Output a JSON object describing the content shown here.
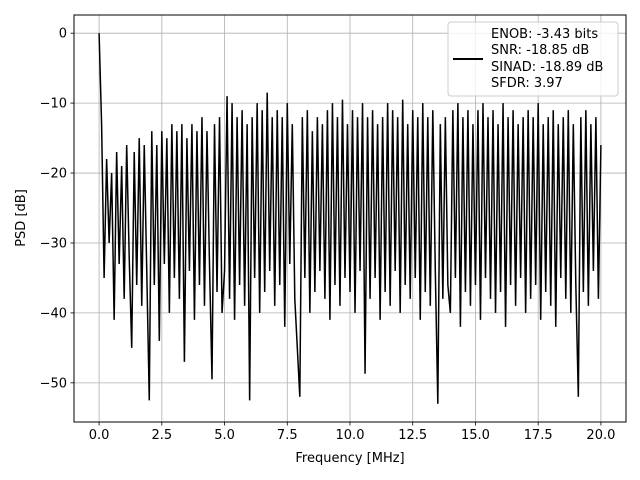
{
  "chart_data": {
    "type": "line",
    "title": "",
    "xlabel": "Frequency [MHz]",
    "ylabel": "PSD [dB]",
    "xlim": [
      -1.0,
      21.0
    ],
    "ylim": [
      -55.6,
      2.6
    ],
    "grid": true,
    "xticks": [
      0,
      2.5,
      5,
      7.5,
      10,
      12.5,
      15,
      17.5,
      20
    ],
    "xtick_labels": [
      "0.0",
      "2.5",
      "5.0",
      "7.5",
      "10.0",
      "12.5",
      "15.0",
      "17.5",
      "20.0"
    ],
    "yticks": [
      0,
      -10,
      -20,
      -30,
      -40,
      -50
    ],
    "ytick_labels": [
      "0",
      "−10",
      "−20",
      "−30",
      "−40",
      "−50"
    ],
    "legend": {
      "placement": "upper-right",
      "entries": [
        "ENOB: -3.43 bits",
        "SNR: -18.85 dB",
        "SINAD: -18.89 dB",
        "SFDR: 3.97"
      ]
    },
    "series": [
      {
        "name": "PSD",
        "color": "#000000",
        "x_start": 0.0,
        "x_step": 0.1,
        "values": [
          0,
          -13,
          -35,
          -18,
          -30,
          -20,
          -41,
          -17,
          -33,
          -19,
          -38,
          -16,
          -32,
          -45,
          -17,
          -36,
          -15,
          -39,
          -16,
          -34,
          -52.5,
          -14,
          -36,
          -16,
          -44,
          -14,
          -33,
          -15,
          -40,
          -13,
          -35,
          -14,
          -38,
          -13,
          -47,
          -15,
          -34,
          -13,
          -41,
          -14,
          -36,
          -12,
          -39,
          -14,
          -33,
          -49.5,
          -13,
          -37,
          -12,
          -40,
          -34,
          -9,
          -38,
          -10,
          -41,
          -12,
          -36,
          -11,
          -39,
          -13,
          -52.5,
          -12,
          -35,
          -10,
          -40,
          -11,
          -37,
          -8.5,
          -34,
          -12,
          -39,
          -11,
          -36,
          -12,
          -42,
          -10,
          -33,
          -13,
          -38,
          -45,
          -52,
          -12,
          -35,
          -11,
          -40,
          -14,
          -37,
          -12,
          -34,
          -13,
          -38,
          -11,
          -41,
          -10,
          -36,
          -12,
          -39,
          -9.5,
          -35,
          -13,
          -37,
          -11,
          -40,
          -12,
          -34,
          -10,
          -48.7,
          -12,
          -38,
          -11,
          -35,
          -13,
          -41,
          -12,
          -37,
          -10,
          -39,
          -11,
          -34,
          -12,
          -40,
          -9.5,
          -36,
          -13,
          -38,
          -11,
          -35,
          -12,
          -41,
          -10,
          -37,
          -12,
          -39,
          -11,
          -34,
          -53,
          -13,
          -38,
          -12,
          -36,
          -40,
          -11,
          -35,
          -10,
          -42,
          -12,
          -37,
          -11,
          -39,
          -13,
          -36,
          -11,
          -41,
          -10,
          -35,
          -12,
          -38,
          -11,
          -40,
          -13,
          -37,
          -10,
          -42,
          -12,
          -36,
          -11,
          -39,
          -13,
          -35,
          -12,
          -40,
          -11,
          -38,
          -12,
          -36,
          -10,
          -41,
          -13,
          -37,
          -12,
          -39,
          -11,
          -42,
          -13,
          -35,
          -12,
          -38,
          -11,
          -40,
          -13,
          -36,
          -52,
          -12,
          -37,
          -11,
          -39,
          -13,
          -34,
          -12,
          -38,
          -16
        ]
      }
    ]
  }
}
